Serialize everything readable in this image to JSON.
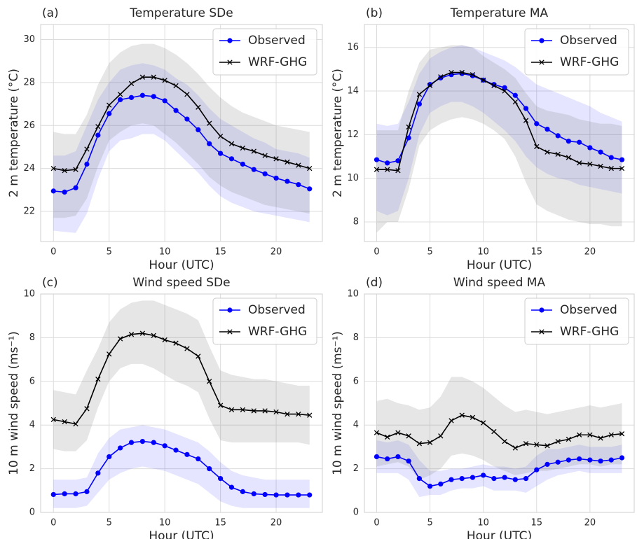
{
  "chart_data": [
    {
      "type": "line",
      "panel_label": "(a)",
      "title": "Temperature SDe",
      "x_label": "Hour (UTC)",
      "y_label": "2 m temperature (°C)",
      "x": [
        0,
        1,
        2,
        3,
        4,
        5,
        6,
        7,
        8,
        9,
        10,
        11,
        12,
        13,
        14,
        15,
        16,
        17,
        18,
        19,
        20,
        21,
        22,
        23
      ],
      "xlim": [
        -1.15,
        24.15
      ],
      "xticks": [
        0,
        5,
        10,
        15,
        20
      ],
      "ylim": [
        20.6,
        30.7
      ],
      "yticks": [
        22,
        24,
        26,
        28,
        30
      ],
      "grid": true,
      "legend": "upper right",
      "series": [
        {
          "name": "Observed",
          "color": "#0000ff",
          "marker": "o",
          "band_color": "#0000ff",
          "band_opacity": 0.1,
          "values": [
            22.95,
            22.9,
            23.1,
            24.2,
            25.55,
            26.55,
            27.2,
            27.3,
            27.4,
            27.35,
            27.15,
            26.7,
            26.3,
            25.8,
            25.15,
            24.7,
            24.45,
            24.2,
            23.95,
            23.75,
            23.55,
            23.4,
            23.25,
            23.05
          ],
          "lower": [
            21.1,
            21.05,
            21.0,
            21.9,
            23.5,
            24.8,
            25.3,
            25.4,
            25.6,
            25.6,
            25.3,
            24.8,
            24.3,
            23.8,
            23.2,
            22.7,
            22.4,
            22.2,
            22.0,
            21.9,
            21.8,
            21.7,
            21.6,
            21.5
          ],
          "upper": [
            24.6,
            24.6,
            24.8,
            26.0,
            27.2,
            28.0,
            28.6,
            28.8,
            28.9,
            28.8,
            28.6,
            28.2,
            27.9,
            27.4,
            26.8,
            26.3,
            26.0,
            25.7,
            25.4,
            25.2,
            24.9,
            24.8,
            24.7,
            24.5
          ]
        },
        {
          "name": "WRF-GHG",
          "color": "#000000",
          "marker": "x",
          "band_color": "#808080",
          "band_opacity": 0.2,
          "values": [
            24.0,
            23.9,
            23.95,
            24.9,
            25.95,
            26.95,
            27.45,
            27.95,
            28.25,
            28.25,
            28.1,
            27.85,
            27.45,
            26.85,
            26.1,
            25.5,
            25.15,
            24.95,
            24.8,
            24.6,
            24.45,
            24.3,
            24.15,
            24.0
          ],
          "lower": [
            21.7,
            21.7,
            21.8,
            22.6,
            24.1,
            25.3,
            25.7,
            26.0,
            26.1,
            26.0,
            25.6,
            25.2,
            24.7,
            24.2,
            23.6,
            23.2,
            22.9,
            22.7,
            22.5,
            22.3,
            22.2,
            22.1,
            22.0,
            21.9
          ],
          "upper": [
            25.7,
            25.6,
            25.6,
            26.5,
            27.9,
            28.9,
            29.4,
            29.7,
            29.8,
            29.8,
            29.6,
            29.3,
            28.9,
            28.4,
            27.8,
            27.3,
            26.9,
            26.6,
            26.4,
            26.2,
            26.0,
            25.9,
            25.8,
            25.7
          ]
        }
      ]
    },
    {
      "type": "line",
      "panel_label": "(b)",
      "title": "Temperature MA",
      "x_label": "Hour (UTC)",
      "y_label": "2 m temperature (°C)",
      "x": [
        0,
        1,
        2,
        3,
        4,
        5,
        6,
        7,
        8,
        9,
        10,
        11,
        12,
        13,
        14,
        15,
        16,
        17,
        18,
        19,
        20,
        21,
        22,
        23
      ],
      "xlim": [
        -1.15,
        24.15
      ],
      "xticks": [
        0,
        5,
        10,
        15,
        20
      ],
      "ylim": [
        7.1,
        17.05
      ],
      "yticks": [
        8,
        10,
        12,
        14,
        16
      ],
      "grid": true,
      "legend": "upper right",
      "series": [
        {
          "name": "Observed",
          "color": "#0000ff",
          "marker": "o",
          "band_color": "#0000ff",
          "band_opacity": 0.1,
          "values": [
            10.85,
            10.7,
            10.8,
            11.85,
            13.4,
            14.3,
            14.6,
            14.75,
            14.8,
            14.7,
            14.5,
            14.3,
            14.15,
            13.8,
            13.2,
            12.5,
            12.25,
            11.95,
            11.7,
            11.65,
            11.4,
            11.2,
            10.95,
            10.85
          ],
          "lower": [
            8.5,
            8.3,
            8.5,
            10.0,
            12.0,
            13.0,
            13.3,
            13.5,
            13.5,
            13.3,
            13.0,
            12.6,
            12.2,
            11.7,
            11.0,
            10.5,
            10.2,
            10.0,
            9.9,
            9.7,
            9.6,
            9.5,
            9.4,
            9.3
          ],
          "upper": [
            12.5,
            12.4,
            12.5,
            13.5,
            14.8,
            15.5,
            15.8,
            16.0,
            16.1,
            16.0,
            15.8,
            15.6,
            15.4,
            15.1,
            14.7,
            14.3,
            14.1,
            13.9,
            13.7,
            13.5,
            13.3,
            13.0,
            12.8,
            12.6
          ]
        },
        {
          "name": "WRF-GHG",
          "color": "#000000",
          "marker": "x",
          "band_color": "#808080",
          "band_opacity": 0.2,
          "values": [
            10.4,
            10.4,
            10.35,
            12.35,
            13.85,
            14.25,
            14.65,
            14.85,
            14.85,
            14.75,
            14.5,
            14.25,
            14.0,
            13.5,
            12.65,
            11.45,
            11.2,
            11.1,
            10.95,
            10.7,
            10.65,
            10.55,
            10.45,
            10.45
          ],
          "lower": [
            7.5,
            8.0,
            8.0,
            9.5,
            11.5,
            12.2,
            12.5,
            12.7,
            12.8,
            12.7,
            12.5,
            12.2,
            11.8,
            11.0,
            9.8,
            8.8,
            8.5,
            8.3,
            8.1,
            8.0,
            7.9,
            7.9,
            7.8,
            7.8
          ],
          "upper": [
            12.2,
            12.2,
            12.2,
            14.0,
            15.3,
            15.9,
            16.0,
            16.1,
            16.1,
            16.0,
            15.6,
            15.3,
            15.0,
            14.6,
            13.9,
            13.3,
            13.1,
            13.0,
            12.9,
            12.7,
            12.6,
            12.5,
            12.5,
            12.4
          ]
        }
      ]
    },
    {
      "type": "line",
      "panel_label": "(c)",
      "title": "Wind speed SDe",
      "x_label": "Hour (UTC)",
      "y_label": "10 m wind speed (ms⁻¹)",
      "x": [
        0,
        1,
        2,
        3,
        4,
        5,
        6,
        7,
        8,
        9,
        10,
        11,
        12,
        13,
        14,
        15,
        16,
        17,
        18,
        19,
        20,
        21,
        22,
        23
      ],
      "xlim": [
        -1.15,
        24.15
      ],
      "xticks": [
        0,
        5,
        10,
        15,
        20
      ],
      "ylim": [
        0,
        10
      ],
      "yticks": [
        0,
        2,
        4,
        6,
        8,
        10
      ],
      "grid": true,
      "legend": "upper right",
      "series": [
        {
          "name": "Observed",
          "color": "#0000ff",
          "marker": "o",
          "band_color": "#0000ff",
          "band_opacity": 0.1,
          "values": [
            0.82,
            0.85,
            0.85,
            0.95,
            1.8,
            2.55,
            2.95,
            3.2,
            3.25,
            3.2,
            3.05,
            2.85,
            2.65,
            2.45,
            2.0,
            1.55,
            1.15,
            0.95,
            0.85,
            0.82,
            0.8,
            0.8,
            0.8,
            0.8
          ],
          "lower": [
            0.2,
            0.2,
            0.2,
            0.3,
            0.9,
            1.5,
            1.8,
            2.0,
            2.1,
            2.0,
            1.9,
            1.7,
            1.5,
            1.3,
            0.9,
            0.5,
            0.3,
            0.2,
            0.2,
            0.2,
            0.2,
            0.2,
            0.2,
            0.2
          ],
          "upper": [
            1.5,
            1.5,
            1.5,
            1.6,
            2.7,
            3.4,
            3.8,
            3.9,
            4.0,
            3.9,
            3.8,
            3.6,
            3.4,
            3.2,
            2.8,
            2.3,
            1.9,
            1.7,
            1.6,
            1.5,
            1.5,
            1.5,
            1.5,
            1.5
          ]
        },
        {
          "name": "WRF-GHG",
          "color": "#000000",
          "marker": "x",
          "band_color": "#808080",
          "band_opacity": 0.2,
          "values": [
            4.25,
            4.15,
            4.05,
            4.75,
            6.1,
            7.25,
            7.95,
            8.15,
            8.2,
            8.1,
            7.9,
            7.75,
            7.5,
            7.15,
            6.0,
            4.9,
            4.7,
            4.7,
            4.65,
            4.65,
            4.6,
            4.5,
            4.5,
            4.45
          ],
          "lower": [
            2.9,
            2.8,
            2.8,
            3.3,
            4.8,
            6.0,
            6.6,
            6.8,
            6.8,
            6.6,
            6.3,
            6.0,
            5.8,
            5.5,
            4.3,
            3.3,
            3.2,
            3.2,
            3.2,
            3.2,
            3.2,
            3.2,
            3.2,
            3.1
          ],
          "upper": [
            5.6,
            5.5,
            5.4,
            6.5,
            7.5,
            8.7,
            9.3,
            9.6,
            9.7,
            9.7,
            9.5,
            9.3,
            9.1,
            8.8,
            7.6,
            6.5,
            6.3,
            6.2,
            6.1,
            6.1,
            6.0,
            5.9,
            5.8,
            5.8
          ]
        }
      ]
    },
    {
      "type": "line",
      "panel_label": "(d)",
      "title": "Wind speed MA",
      "x_label": "Hour (UTC)",
      "y_label": "10 m wind speed (ms⁻¹)",
      "x": [
        0,
        1,
        2,
        3,
        4,
        5,
        6,
        7,
        8,
        9,
        10,
        11,
        12,
        13,
        14,
        15,
        16,
        17,
        18,
        19,
        20,
        21,
        22,
        23
      ],
      "xlim": [
        -1.15,
        24.15
      ],
      "xticks": [
        0,
        5,
        10,
        15,
        20
      ],
      "ylim": [
        0,
        10
      ],
      "yticks": [
        0,
        2,
        4,
        6,
        8,
        10
      ],
      "grid": true,
      "legend": "upper right",
      "series": [
        {
          "name": "Observed",
          "color": "#0000ff",
          "marker": "o",
          "band_color": "#0000ff",
          "band_opacity": 0.1,
          "values": [
            2.55,
            2.45,
            2.55,
            2.35,
            1.55,
            1.2,
            1.3,
            1.5,
            1.55,
            1.6,
            1.7,
            1.55,
            1.6,
            1.5,
            1.55,
            1.95,
            2.2,
            2.3,
            2.4,
            2.45,
            2.4,
            2.35,
            2.4,
            2.5
          ],
          "lower": [
            1.8,
            1.8,
            1.8,
            1.5,
            0.7,
            0.8,
            0.8,
            1.0,
            1.1,
            1.1,
            1.2,
            1.0,
            1.0,
            1.0,
            0.9,
            1.2,
            1.5,
            1.7,
            1.8,
            1.9,
            1.8,
            1.8,
            1.8,
            1.8
          ],
          "upper": [
            3.3,
            3.2,
            3.3,
            3.1,
            2.4,
            1.9,
            1.9,
            2.0,
            2.0,
            2.1,
            2.2,
            2.1,
            2.1,
            2.0,
            2.1,
            2.6,
            2.9,
            2.9,
            3.0,
            3.1,
            3.0,
            3.0,
            3.0,
            3.1
          ]
        },
        {
          "name": "WRF-GHG",
          "color": "#000000",
          "marker": "x",
          "band_color": "#808080",
          "band_opacity": 0.2,
          "values": [
            3.65,
            3.45,
            3.65,
            3.5,
            3.15,
            3.2,
            3.5,
            4.2,
            4.45,
            4.35,
            4.1,
            3.7,
            3.25,
            2.95,
            3.15,
            3.1,
            3.05,
            3.25,
            3.35,
            3.55,
            3.55,
            3.4,
            3.55,
            3.6
          ],
          "lower": [
            2.1,
            2.2,
            2.3,
            2.1,
            1.5,
            1.7,
            2.0,
            2.6,
            2.7,
            2.6,
            2.4,
            2.1,
            1.9,
            1.7,
            1.8,
            1.9,
            1.9,
            2.0,
            2.1,
            2.2,
            2.2,
            2.1,
            2.2,
            2.2
          ],
          "upper": [
            5.1,
            5.2,
            5.0,
            4.9,
            4.7,
            4.8,
            5.3,
            6.2,
            6.2,
            6.0,
            5.7,
            5.3,
            4.9,
            4.6,
            4.7,
            4.6,
            4.5,
            4.6,
            4.7,
            4.8,
            4.9,
            4.8,
            4.9,
            5.0
          ]
        }
      ]
    }
  ]
}
